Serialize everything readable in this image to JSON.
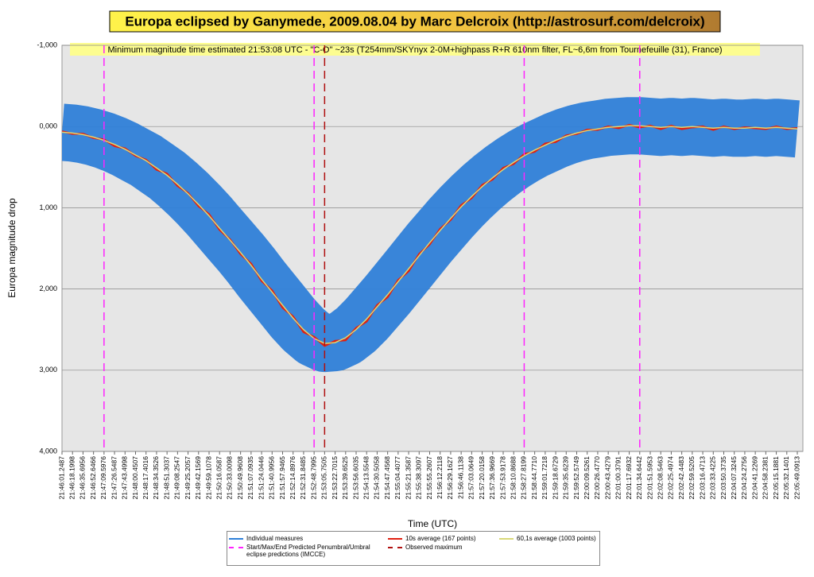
{
  "chart_data": {
    "type": "line",
    "title": "Europa eclipsed by Ganymede, 2009.08.04 by Marc Delcroix (http://astrosurf.com/delcroix)",
    "subtitle": "Minimum magnitude time estimated 21:53:08 UTC - \"C-O\" ~23s (T254mm/SKYnyx 2-0M+highpass R+R 610nm filter, FL~6,6m from Tournefeuille (31), France)",
    "x_label": "Time (UTC)",
    "y_label": "Europa magnitude drop",
    "ylim": [
      -1,
      4
    ],
    "y_inverted": true,
    "grid": true,
    "yticks": [
      {
        "value": -1,
        "label": "-1,000"
      },
      {
        "value": 0,
        "label": "0,000"
      },
      {
        "value": 1,
        "label": "1,000"
      },
      {
        "value": 2,
        "label": "2,000"
      },
      {
        "value": 3,
        "label": "3,000"
      },
      {
        "value": 4,
        "label": "4,000"
      }
    ],
    "categories": [
      "21:46:01.2487",
      "21:46:18.1998",
      "21:46:35.6956",
      "21:46:52.6466",
      "21:47:09.5976",
      "21:47:26.5487",
      "21:47:43.4998",
      "21:48:00.4507",
      "21:48:17.4016",
      "21:48:34.3526",
      "21:48:51.3037",
      "21:49:08.2547",
      "21:49:25.2057",
      "21:49:42.1569",
      "21:49:59.1078",
      "21:50:16.0587",
      "21:50:33.0098",
      "21:50:49.9608",
      "21:51:07.0935",
      "21:51:24.0446",
      "21:51:40.9956",
      "21:51:57.9465",
      "21:52:14.8976",
      "21:52:31.8485",
      "21:52:48.7995",
      "21:53:05.7505",
      "21:53:22.7015",
      "21:53:39.6525",
      "21:53:56.6035",
      "21:54:13.5548",
      "21:54:30.5058",
      "21:54:47.4568",
      "21:55:04.4077",
      "21:55:21.3587",
      "21:55:38.3097",
      "21:55:55.2607",
      "21:56:12.2118",
      "21:56:29.1627",
      "21:56:46.1138",
      "21:57:03.0649",
      "21:57:20.0158",
      "21:57:36.9669",
      "21:57:53.9178",
      "21:58:10.8688",
      "21:58:27.8199",
      "21:58:44.7710",
      "21:59:01.7218",
      "21:59:18.6729",
      "21:59:35.6239",
      "21:59:52.5749",
      "22:00:09.5261",
      "22:00:26.4770",
      "22:00:43.4279",
      "22:01:00.3791",
      "22:01:17.6932",
      "22:01:34.6442",
      "22:01:51.5953",
      "22:02:08.5463",
      "22:02:25.4974",
      "22:02:42.4483",
      "22:02:59.5205",
      "22:03:16.4713",
      "22:03:33.4225",
      "22:03:50.3735",
      "22:04:07.3245",
      "22:04:24.2756",
      "22:04:41.2269",
      "22:04:58.2381",
      "22:05:15.1881",
      "22:05:32.1401",
      "22:05:49.0913"
    ],
    "series": [
      {
        "name": "Individual measures",
        "color": "#2f80d8",
        "style": "band",
        "values": [
          0.07,
          0.08,
          0.1,
          0.13,
          0.17,
          0.22,
          0.28,
          0.35,
          0.42,
          0.51,
          0.6,
          0.71,
          0.83,
          0.96,
          1.1,
          1.25,
          1.4,
          1.55,
          1.71,
          1.88,
          2.04,
          2.2,
          2.36,
          2.5,
          2.61,
          2.67,
          2.66,
          2.6,
          2.5,
          2.37,
          2.22,
          2.07,
          1.91,
          1.75,
          1.59,
          1.43,
          1.28,
          1.13,
          0.99,
          0.86,
          0.74,
          0.63,
          0.53,
          0.44,
          0.36,
          0.29,
          0.23,
          0.17,
          0.12,
          0.08,
          0.05,
          0.03,
          0.01,
          0.0,
          -0.01,
          -0.01,
          0.0,
          0.01,
          0.0,
          0.01,
          0.0,
          0.01,
          0.02,
          0.01,
          0.02,
          0.02,
          0.01,
          0.02,
          0.01,
          0.02,
          0.03
        ]
      },
      {
        "name": "10s average (167 points)",
        "color": "#e02010",
        "style": "line",
        "values": [
          0.06,
          0.09,
          0.09,
          0.14,
          0.16,
          0.24,
          0.27,
          0.36,
          0.41,
          0.53,
          0.58,
          0.73,
          0.82,
          0.98,
          1.08,
          1.27,
          1.39,
          1.57,
          1.69,
          1.9,
          2.02,
          2.23,
          2.34,
          2.53,
          2.59,
          2.7,
          2.64,
          2.63,
          2.48,
          2.4,
          2.2,
          2.1,
          1.89,
          1.78,
          1.57,
          1.45,
          1.26,
          1.15,
          0.97,
          0.88,
          0.72,
          0.65,
          0.51,
          0.46,
          0.34,
          0.31,
          0.21,
          0.19,
          0.11,
          0.09,
          0.04,
          0.04,
          0.0,
          0.02,
          -0.02,
          0.01,
          -0.01,
          0.03,
          -0.01,
          0.03,
          0.01,
          0.0,
          0.04,
          0.0,
          0.03,
          0.01,
          0.02,
          0.03,
          0.0,
          0.03,
          0.02
        ]
      },
      {
        "name": "60,1s average (1003 points)",
        "color": "#d8d878",
        "style": "line",
        "values": [
          0.07,
          0.08,
          0.1,
          0.13,
          0.17,
          0.22,
          0.28,
          0.35,
          0.42,
          0.51,
          0.6,
          0.71,
          0.83,
          0.96,
          1.1,
          1.25,
          1.4,
          1.55,
          1.71,
          1.88,
          2.04,
          2.2,
          2.36,
          2.5,
          2.61,
          2.67,
          2.66,
          2.6,
          2.5,
          2.37,
          2.22,
          2.07,
          1.91,
          1.75,
          1.59,
          1.43,
          1.28,
          1.13,
          0.99,
          0.86,
          0.74,
          0.63,
          0.53,
          0.44,
          0.36,
          0.29,
          0.23,
          0.17,
          0.12,
          0.08,
          0.05,
          0.03,
          0.01,
          0.0,
          -0.01,
          -0.01,
          0.0,
          0.01,
          0.0,
          0.01,
          0.0,
          0.01,
          0.02,
          0.01,
          0.02,
          0.02,
          0.01,
          0.02,
          0.01,
          0.02,
          0.03
        ]
      },
      {
        "name": "Start/Max/End Predicted Penumbral/Umbral eclipse predictions (IMCCE)",
        "color": "#ff22ff",
        "style": "vline",
        "at": [
          "21:47:09.5976",
          "21:52:48.7995",
          "21:58:27.8199",
          "22:01:34.6442"
        ]
      },
      {
        "name": "Observed maximum",
        "color": "#b01010",
        "style": "vline",
        "at": [
          "21:53:05.7505"
        ]
      }
    ]
  }
}
